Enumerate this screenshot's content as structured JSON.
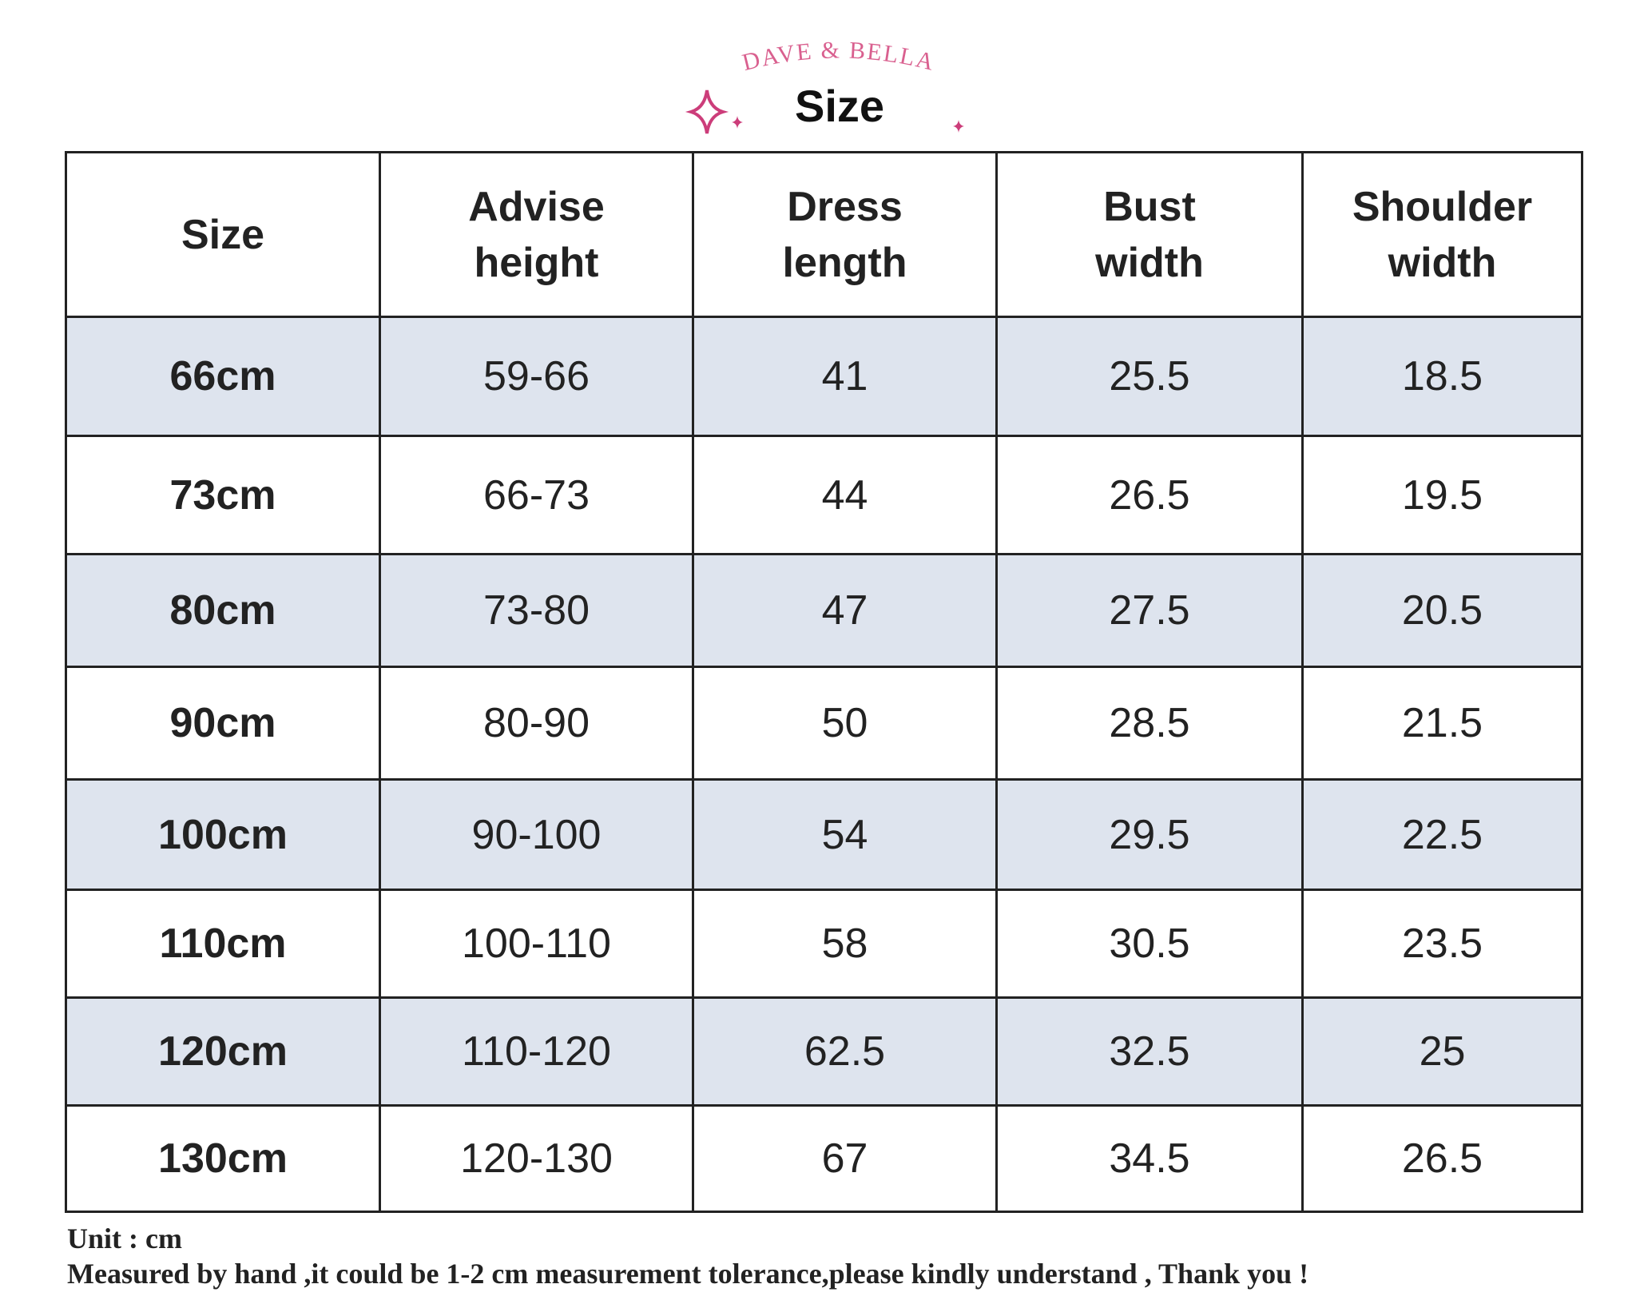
{
  "brand": "DAVE & BELLA",
  "title": "Size",
  "table": {
    "header": [
      "Size",
      "Advise height",
      "Dress length",
      "Bust width",
      "Shoulder width"
    ],
    "rows": [
      [
        "66cm",
        "59-66",
        "41",
        "25.5",
        "18.5"
      ],
      [
        "73cm",
        "66-73",
        "44",
        "26.5",
        "19.5"
      ],
      [
        "80cm",
        "73-80",
        "47",
        "27.5",
        "20.5"
      ],
      [
        "90cm",
        "80-90",
        "50",
        "28.5",
        "21.5"
      ],
      [
        "100cm",
        "90-100",
        "54",
        "29.5",
        "22.5"
      ],
      [
        "110cm",
        "100-110",
        "58",
        "30.5",
        "23.5"
      ],
      [
        "120cm",
        "110-120",
        "62.5",
        "32.5",
        "25"
      ],
      [
        "130cm",
        "120-130",
        "67",
        "34.5",
        "26.5"
      ]
    ]
  },
  "footer": [
    "Unit : cm",
    "Measured by hand ,it could be 1-2 cm measurement tolerance,please kindly understand , Thank you !"
  ]
}
